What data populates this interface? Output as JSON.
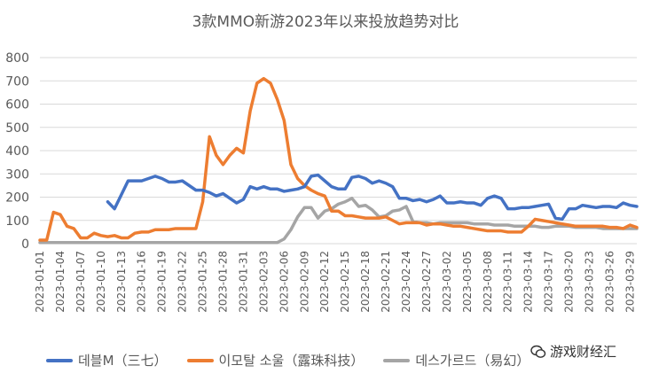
{
  "colors": {
    "series1": "#4472C4",
    "series2": "#ED7D31",
    "series3": "#A5A5A5",
    "grid": "#D9D9D9",
    "text": "#595959"
  },
  "watermark": {
    "icon": "wechat-icon",
    "text": "游戏财经汇"
  },
  "chart_data": {
    "type": "line",
    "title": "3款MMO新游2023年以来投放趋势对比",
    "xlabel": "",
    "ylabel": "",
    "ylim": [
      0,
      800
    ],
    "yticks": [
      "0",
      "100",
      "200",
      "300",
      "400",
      "500",
      "600",
      "700",
      "800"
    ],
    "grid": "horizontal",
    "legend_position": "bottom",
    "x_tick_labels": [
      "2023-01-01",
      "2023-01-04",
      "2023-01-07",
      "2023-01-10",
      "2023-01-13",
      "2023-01-16",
      "2023-01-19",
      "2023-01-22",
      "2023-01-25",
      "2023-01-28",
      "2023-01-31",
      "2023-02-03",
      "2023-02-06",
      "2023-02-09",
      "2023-02-12",
      "2023-02-15",
      "2023-02-18",
      "2023-02-21",
      "2023-02-24",
      "2023-02-27",
      "2023-03-02",
      "2023-03-05",
      "2023-03-08",
      "2023-03-11",
      "2023-03-14",
      "2023-03-17",
      "2023-03-20",
      "2023-03-23",
      "2023-03-26",
      "2023-03-29"
    ],
    "x": [
      "2023-01-01",
      "2023-01-02",
      "2023-01-03",
      "2023-01-04",
      "2023-01-05",
      "2023-01-06",
      "2023-01-07",
      "2023-01-08",
      "2023-01-09",
      "2023-01-10",
      "2023-01-11",
      "2023-01-12",
      "2023-01-13",
      "2023-01-14",
      "2023-01-15",
      "2023-01-16",
      "2023-01-17",
      "2023-01-18",
      "2023-01-19",
      "2023-01-20",
      "2023-01-21",
      "2023-01-22",
      "2023-01-23",
      "2023-01-24",
      "2023-01-25",
      "2023-01-26",
      "2023-01-27",
      "2023-01-28",
      "2023-01-29",
      "2023-01-30",
      "2023-01-31",
      "2023-02-01",
      "2023-02-02",
      "2023-02-03",
      "2023-02-04",
      "2023-02-05",
      "2023-02-06",
      "2023-02-07",
      "2023-02-08",
      "2023-02-09",
      "2023-02-10",
      "2023-02-11",
      "2023-02-12",
      "2023-02-13",
      "2023-02-14",
      "2023-02-15",
      "2023-02-16",
      "2023-02-17",
      "2023-02-18",
      "2023-02-19",
      "2023-02-20",
      "2023-02-21",
      "2023-02-22",
      "2023-02-23",
      "2023-02-24",
      "2023-02-25",
      "2023-02-26",
      "2023-02-27",
      "2023-02-28",
      "2023-03-01",
      "2023-03-02",
      "2023-03-03",
      "2023-03-04",
      "2023-03-05",
      "2023-03-06",
      "2023-03-07",
      "2023-03-08",
      "2023-03-09",
      "2023-03-10",
      "2023-03-11",
      "2023-03-12",
      "2023-03-13",
      "2023-03-14",
      "2023-03-15",
      "2023-03-16",
      "2023-03-17",
      "2023-03-18",
      "2023-03-19",
      "2023-03-20",
      "2023-03-21",
      "2023-03-22",
      "2023-03-23",
      "2023-03-24",
      "2023-03-25",
      "2023-03-26",
      "2023-03-27",
      "2023-03-28",
      "2023-03-29",
      "2023-03-30"
    ],
    "series": [
      {
        "name": "데블M（三七）",
        "color": "#4472C4",
        "values": [
          null,
          null,
          null,
          null,
          null,
          null,
          null,
          null,
          null,
          null,
          180,
          150,
          210,
          270,
          270,
          270,
          280,
          290,
          280,
          265,
          265,
          270,
          250,
          230,
          230,
          220,
          205,
          215,
          195,
          175,
          190,
          245,
          235,
          245,
          235,
          235,
          225,
          230,
          235,
          245,
          290,
          295,
          270,
          245,
          235,
          235,
          285,
          290,
          280,
          260,
          270,
          260,
          245,
          195,
          195,
          185,
          190,
          180,
          190,
          205,
          175,
          175,
          180,
          175,
          175,
          165,
          195,
          205,
          195,
          150,
          150,
          155,
          155,
          160,
          165,
          170,
          110,
          105,
          150,
          150,
          165,
          160,
          155,
          160,
          160,
          155,
          175,
          165,
          160
        ]
      },
      {
        "name": "이모탈 소울（露珠科技）",
        "color": "#ED7D31",
        "values": [
          15,
          15,
          135,
          125,
          75,
          65,
          25,
          25,
          45,
          35,
          30,
          35,
          25,
          25,
          45,
          50,
          50,
          60,
          60,
          60,
          65,
          65,
          65,
          65,
          180,
          460,
          380,
          340,
          380,
          410,
          390,
          570,
          690,
          710,
          690,
          620,
          530,
          340,
          280,
          250,
          230,
          215,
          205,
          140,
          140,
          120,
          120,
          115,
          110,
          110,
          110,
          115,
          100,
          85,
          90,
          90,
          90,
          80,
          85,
          85,
          80,
          75,
          75,
          70,
          65,
          60,
          55,
          55,
          55,
          50,
          50,
          50,
          75,
          105,
          100,
          95,
          90,
          85,
          80,
          75,
          75,
          75,
          75,
          75,
          70,
          70,
          65,
          80,
          70
        ]
      },
      {
        "name": "데스가르드（易幻）",
        "color": "#A5A5A5",
        "values": [
          5,
          5,
          5,
          5,
          5,
          5,
          5,
          5,
          5,
          5,
          5,
          5,
          5,
          5,
          5,
          5,
          5,
          5,
          5,
          5,
          5,
          5,
          5,
          5,
          5,
          5,
          5,
          5,
          5,
          5,
          5,
          5,
          5,
          5,
          5,
          5,
          20,
          60,
          115,
          155,
          155,
          110,
          140,
          150,
          170,
          180,
          195,
          160,
          165,
          145,
          115,
          120,
          140,
          145,
          160,
          95,
          90,
          90,
          85,
          90,
          90,
          90,
          90,
          90,
          85,
          85,
          85,
          80,
          80,
          80,
          75,
          75,
          75,
          75,
          70,
          70,
          75,
          75,
          75,
          70,
          70,
          70,
          70,
          65,
          65,
          65,
          65,
          65,
          65
        ]
      }
    ]
  }
}
